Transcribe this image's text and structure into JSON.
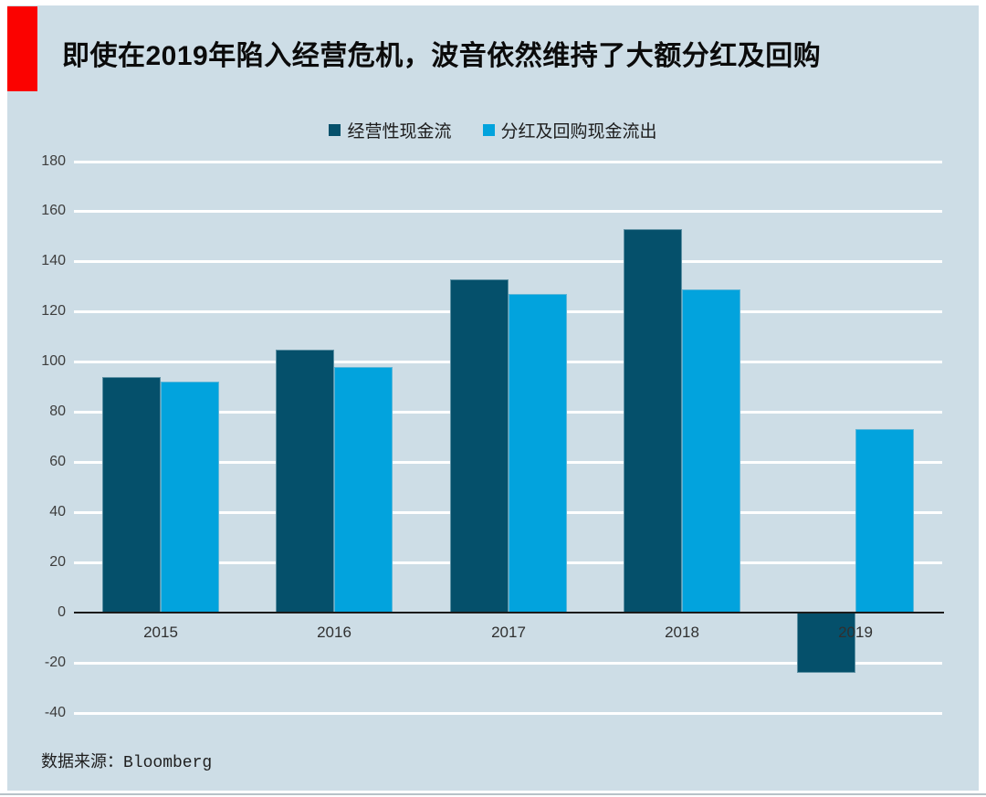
{
  "panel": {
    "background_color": "#cddde6",
    "accent_color": "#fb0200"
  },
  "header": {
    "title": "即使在2019年陷入经营危机，波音依然维持了大额分红及回购"
  },
  "chart_data": {
    "type": "bar",
    "categories": [
      "2015",
      "2016",
      "2017",
      "2018",
      "2019"
    ],
    "series": [
      {
        "name": "经营性现金流",
        "color": "#05506b",
        "values": [
          94,
          105,
          133,
          153,
          -24
        ]
      },
      {
        "name": "分红及回购现金流出",
        "color": "#02a3dd",
        "values": [
          92,
          98,
          127,
          129,
          73
        ]
      }
    ],
    "title": "",
    "xlabel": "",
    "ylabel": "",
    "ylim": [
      -40,
      180
    ],
    "yticks": [
      180,
      160,
      140,
      120,
      100,
      80,
      60,
      40,
      20,
      0,
      -20,
      -40
    ],
    "grid": true,
    "gridline_color": "#ffffff",
    "axis_line_color": "#1b1b1b",
    "legend_position": "top"
  },
  "footer": {
    "source": "数据来源：Bloomberg"
  }
}
